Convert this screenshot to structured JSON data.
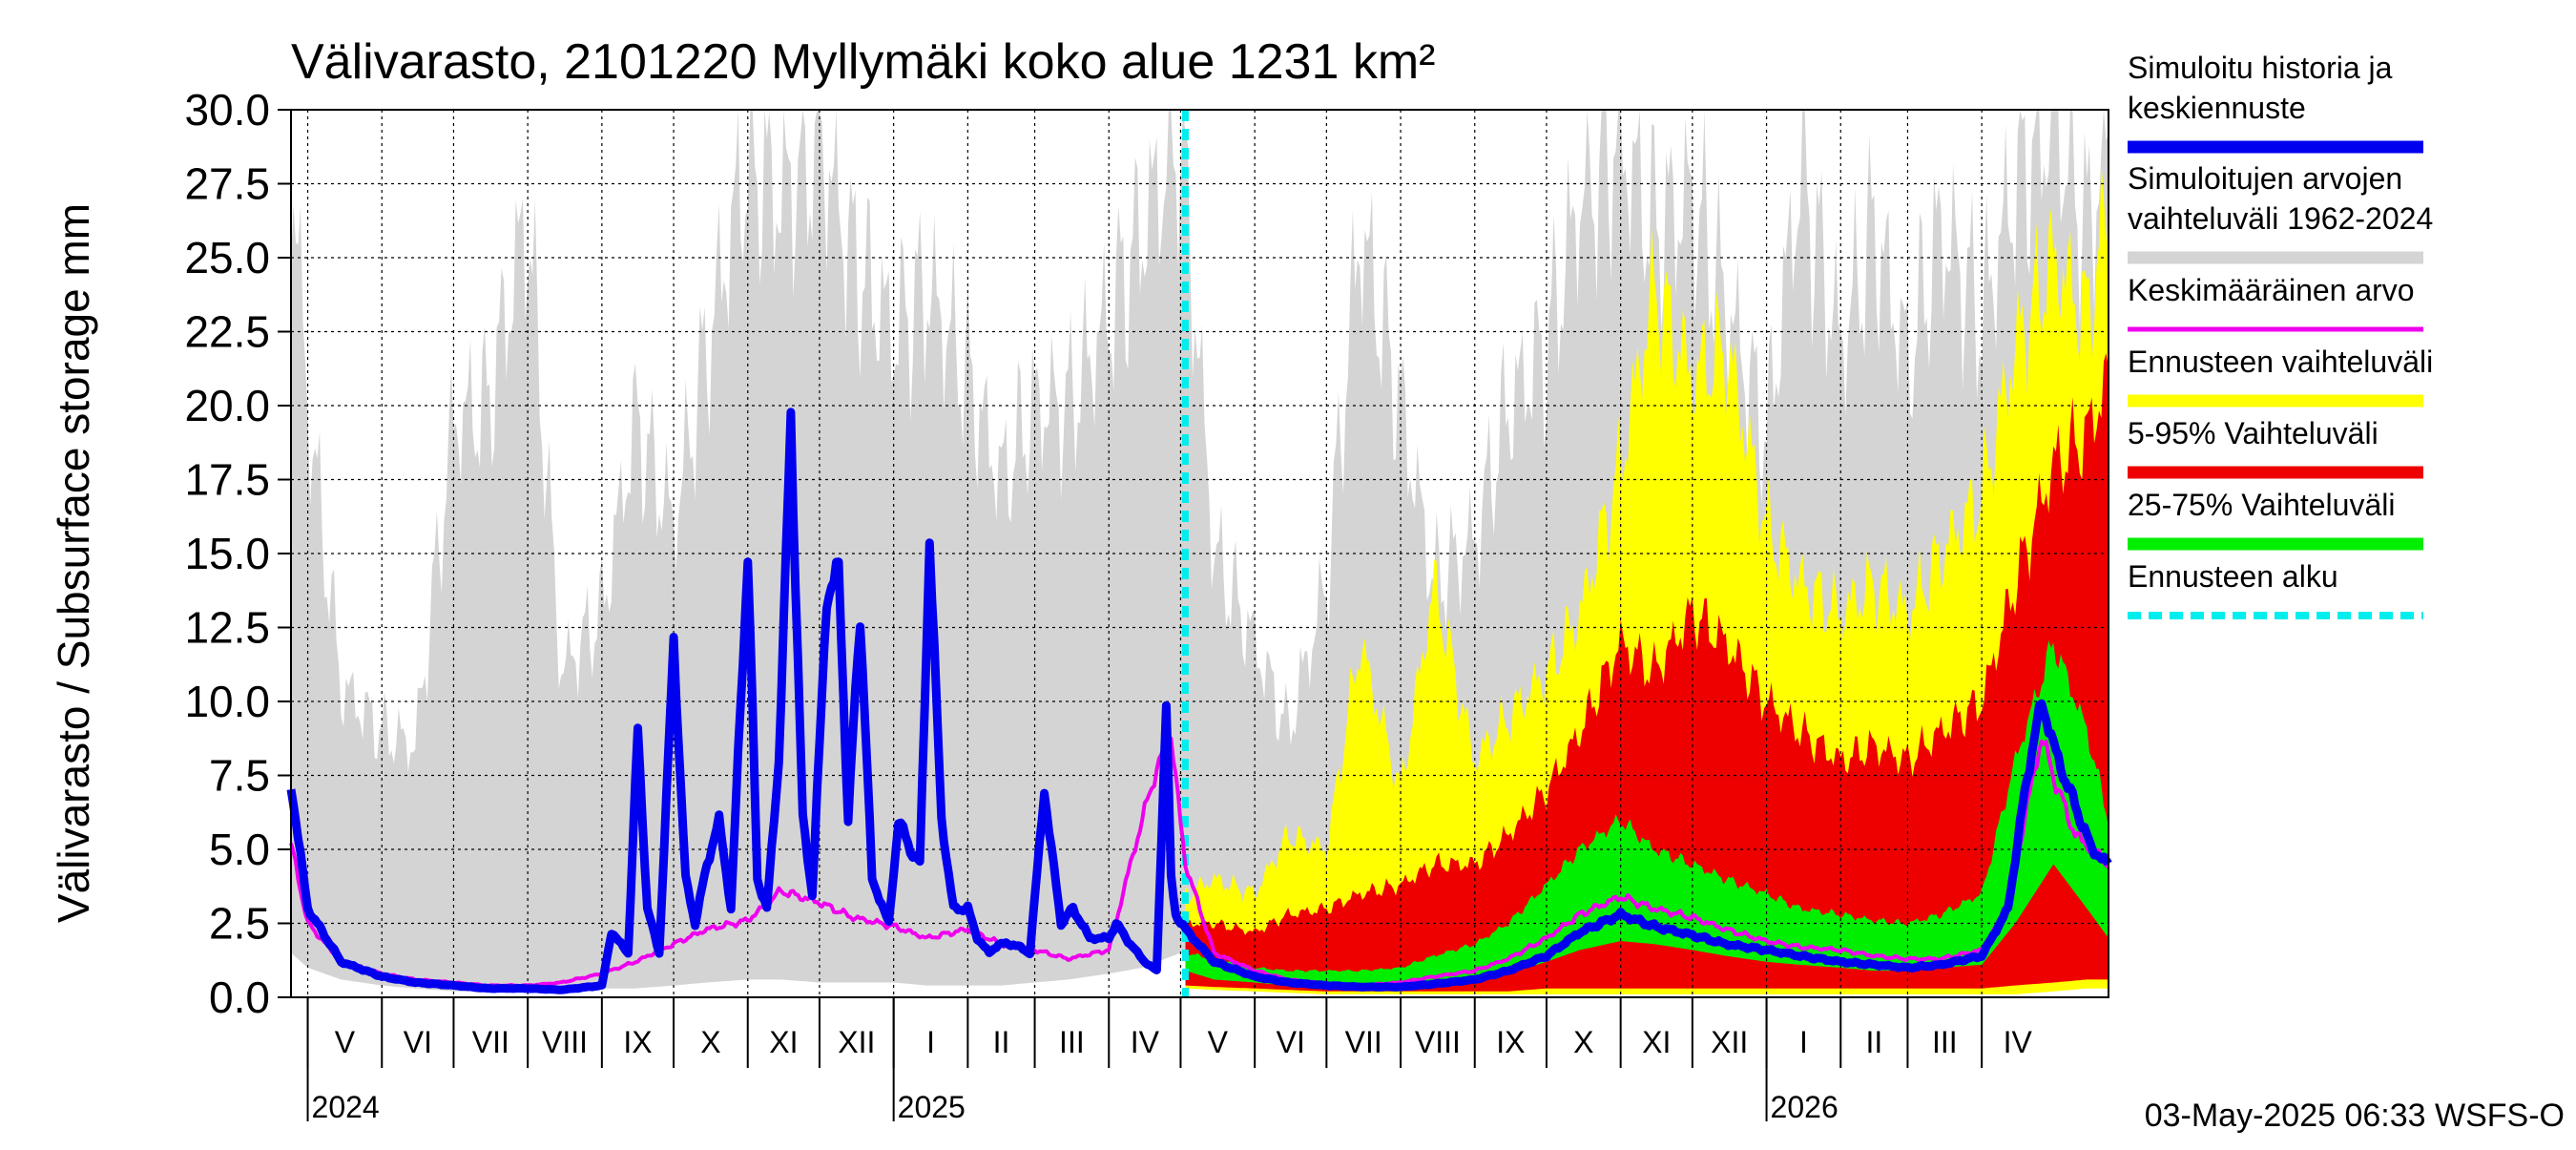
{
  "chart_data": {
    "type": "area",
    "title": "Välivarasto, 2101220 Myllymäki koko alue 1231 km²",
    "ylabel": "Välivarasto / Subsurface storage  mm",
    "ylim": [
      0,
      30
    ],
    "yticks": [
      "0.0",
      "2.5",
      "5.0",
      "7.5",
      "10.0",
      "12.5",
      "15.0",
      "17.5",
      "20.0",
      "22.5",
      "25.0",
      "27.5",
      "30.0"
    ],
    "x_start": "2024-04-24",
    "x_end": "2026-05-24",
    "forecast_start": "2025-05-03",
    "months": [
      {
        "label": "V",
        "start": "2024-05-01",
        "end": "2024-06-01"
      },
      {
        "label": "VI",
        "start": "2024-06-01",
        "end": "2024-07-01"
      },
      {
        "label": "VII",
        "start": "2024-07-01",
        "end": "2024-08-01"
      },
      {
        "label": "VIII",
        "start": "2024-08-01",
        "end": "2024-09-01"
      },
      {
        "label": "IX",
        "start": "2024-09-01",
        "end": "2024-10-01"
      },
      {
        "label": "X",
        "start": "2024-10-01",
        "end": "2024-11-01"
      },
      {
        "label": "XI",
        "start": "2024-11-01",
        "end": "2024-12-01"
      },
      {
        "label": "XII",
        "start": "2024-12-01",
        "end": "2025-01-01"
      },
      {
        "label": "I",
        "start": "2025-01-01",
        "end": "2025-02-01"
      },
      {
        "label": "II",
        "start": "2025-02-01",
        "end": "2025-03-01"
      },
      {
        "label": "III",
        "start": "2025-03-01",
        "end": "2025-04-01"
      },
      {
        "label": "IV",
        "start": "2025-04-01",
        "end": "2025-05-01"
      },
      {
        "label": "V",
        "start": "2025-05-01",
        "end": "2025-06-01"
      },
      {
        "label": "VI",
        "start": "2025-06-01",
        "end": "2025-07-01"
      },
      {
        "label": "VII",
        "start": "2025-07-01",
        "end": "2025-08-01"
      },
      {
        "label": "VIII",
        "start": "2025-08-01",
        "end": "2025-09-01"
      },
      {
        "label": "IX",
        "start": "2025-09-01",
        "end": "2025-10-01"
      },
      {
        "label": "X",
        "start": "2025-10-01",
        "end": "2025-11-01"
      },
      {
        "label": "XI",
        "start": "2025-11-01",
        "end": "2025-12-01"
      },
      {
        "label": "XII",
        "start": "2025-12-01",
        "end": "2026-01-01"
      },
      {
        "label": "I",
        "start": "2026-01-01",
        "end": "2026-02-01"
      },
      {
        "label": "II",
        "start": "2026-02-01",
        "end": "2026-03-01"
      },
      {
        "label": "III",
        "start": "2026-03-01",
        "end": "2026-04-01"
      },
      {
        "label": "IV",
        "start": "2026-04-01",
        "end": "2026-05-01"
      }
    ],
    "years": [
      {
        "label": "2024",
        "date": "2024-05-01"
      },
      {
        "label": "2025",
        "date": "2025-01-01"
      },
      {
        "label": "2026",
        "date": "2026-01-01"
      }
    ],
    "grid": true,
    "legend_position": "right",
    "legend": [
      {
        "lines": [
          "Simuloitu historia ja",
          "keskiennuste"
        ],
        "color": "#0000ee",
        "style": "thick"
      },
      {
        "lines": [
          "Simuloitujen arvojen",
          "vaihteluväli 1962-2024"
        ],
        "color": "#d4d4d4",
        "style": "thick"
      },
      {
        "lines": [
          "Keskimääräinen arvo"
        ],
        "color": "#ee00ee",
        "style": "thin"
      },
      {
        "lines": [
          "Ennusteen vaihteluväli"
        ],
        "color": "#ffff00",
        "style": "thick"
      },
      {
        "lines": [
          "5-95% Vaihteluväli"
        ],
        "color": "#ee0000",
        "style": "thick"
      },
      {
        "lines": [
          "25-75% Vaihteluväli"
        ],
        "color": "#00ee00",
        "style": "thick"
      },
      {
        "lines": [
          "Ennusteen alku"
        ],
        "color": "#00eeee",
        "style": "dashed"
      }
    ],
    "series": {
      "hist_range": {
        "name": "Simuloitujen arvojen vaihteluväli 1962-2024",
        "dates": [
          "2024-04-24",
          "2024-05-01",
          "2024-05-15",
          "2024-06-01",
          "2024-06-15",
          "2024-07-01",
          "2024-07-15",
          "2024-08-01",
          "2024-08-15",
          "2024-09-01",
          "2024-09-15",
          "2024-10-01",
          "2024-10-15",
          "2024-11-01",
          "2024-11-15",
          "2024-12-01",
          "2024-12-15",
          "2025-01-01",
          "2025-01-15",
          "2025-02-01",
          "2025-02-15",
          "2025-03-01",
          "2025-03-15",
          "2025-04-01",
          "2025-04-15",
          "2025-05-01",
          "2025-05-15",
          "2025-06-01",
          "2025-06-15",
          "2025-07-01",
          "2025-07-15",
          "2025-08-01",
          "2025-08-15",
          "2025-09-01",
          "2025-09-15",
          "2025-10-01",
          "2025-10-15",
          "2025-11-01",
          "2025-11-15",
          "2025-12-01",
          "2025-12-15",
          "2026-01-01",
          "2026-01-15",
          "2026-02-01",
          "2026-02-15",
          "2026-03-01",
          "2026-03-15",
          "2026-04-01",
          "2026-04-15",
          "2026-05-01",
          "2026-05-15",
          "2026-05-24"
        ],
        "upper": [
          28.8,
          20.0,
          10.5,
          9.0,
          8.5,
          19.5,
          20.0,
          26.5,
          11.0,
          13.0,
          19.5,
          16.0,
          22.0,
          28.5,
          27.0,
          29.0,
          25.0,
          22.5,
          24.0,
          21.0,
          17.5,
          20.0,
          20.0,
          23.0,
          26.0,
          29.5,
          15.0,
          12.0,
          9.0,
          14.0,
          26.0,
          20.0,
          14.0,
          15.5,
          20.0,
          22.0,
          27.0,
          29.0,
          26.0,
          27.0,
          23.5,
          19.0,
          28.0,
          22.0,
          26.0,
          21.5,
          26.0,
          23.0,
          27.5,
          30.0,
          26.0,
          29.0
        ],
        "lower": [
          1.5,
          1.0,
          0.6,
          0.4,
          0.3,
          0.2,
          0.2,
          0.2,
          0.2,
          0.3,
          0.3,
          0.4,
          0.5,
          0.6,
          0.6,
          0.5,
          0.5,
          0.5,
          0.4,
          0.4,
          0.4,
          0.5,
          0.6,
          0.8,
          1.0,
          1.5,
          1.0,
          0.6,
          0.4,
          0.3,
          0.2,
          0.2,
          0.2,
          0.3,
          0.3,
          0.4,
          0.5,
          0.6,
          0.6,
          0.5,
          0.5,
          0.5,
          0.4,
          0.4,
          0.4,
          0.5,
          0.6,
          0.8,
          1.0,
          1.5,
          1.2,
          1.0
        ]
      },
      "forecast_range": {
        "name": "Ennusteen vaihteluväli",
        "dates": [
          "2025-05-03",
          "2025-05-15",
          "2025-06-01",
          "2025-06-15",
          "2025-07-01",
          "2025-07-15",
          "2025-08-01",
          "2025-08-15",
          "2025-09-01",
          "2025-09-15",
          "2025-10-01",
          "2025-10-15",
          "2025-11-01",
          "2025-11-15",
          "2025-12-01",
          "2025-12-15",
          "2026-01-01",
          "2026-01-15",
          "2026-02-01",
          "2026-02-15",
          "2026-03-01",
          "2026-03-15",
          "2026-04-01",
          "2026-04-15",
          "2026-05-01",
          "2026-05-15",
          "2026-05-24"
        ],
        "upper": [
          3.5,
          4.0,
          3.5,
          5.5,
          5.0,
          12.0,
          7.0,
          14.0,
          8.0,
          9.5,
          11.0,
          13.0,
          18.0,
          24.0,
          21.0,
          22.0,
          16.0,
          14.0,
          13.0,
          14.0,
          13.0,
          15.0,
          17.0,
          22.0,
          25.0,
          23.0,
          27.0
        ],
        "lower": [
          0.3,
          0.25,
          0.2,
          0.15,
          0.1,
          0.1,
          0.1,
          0.1,
          0.1,
          0.1,
          0.1,
          0.1,
          0.1,
          0.1,
          0.1,
          0.1,
          0.1,
          0.1,
          0.1,
          0.1,
          0.1,
          0.1,
          0.1,
          0.1,
          0.2,
          0.3,
          0.3
        ]
      },
      "p5_95": {
        "name": "5-95% Vaihteluväli",
        "dates": [
          "2025-05-03",
          "2025-05-15",
          "2025-06-01",
          "2025-06-15",
          "2025-07-01",
          "2025-07-15",
          "2025-08-01",
          "2025-08-15",
          "2025-09-01",
          "2025-09-15",
          "2025-10-01",
          "2025-10-15",
          "2025-11-01",
          "2025-11-15",
          "2025-12-01",
          "2025-12-15",
          "2026-01-01",
          "2026-01-15",
          "2026-02-01",
          "2026-02-15",
          "2026-03-01",
          "2026-03-15",
          "2026-04-01",
          "2026-04-15",
          "2026-05-01",
          "2026-05-15",
          "2026-05-24"
        ],
        "upper": [
          2.5,
          2.5,
          2.2,
          2.8,
          3.0,
          3.5,
          3.8,
          4.5,
          4.5,
          5.5,
          7.0,
          9.0,
          12.0,
          11.0,
          13.0,
          12.0,
          10.0,
          9.0,
          8.0,
          8.5,
          8.0,
          9.0,
          10.0,
          14.0,
          18.0,
          19.0,
          21.0
        ],
        "lower": [
          0.4,
          0.35,
          0.3,
          0.25,
          0.2,
          0.2,
          0.2,
          0.2,
          0.2,
          0.2,
          0.3,
          0.3,
          0.3,
          0.3,
          0.3,
          0.3,
          0.3,
          0.3,
          0.3,
          0.3,
          0.3,
          0.3,
          0.3,
          0.4,
          0.5,
          0.6,
          0.6
        ]
      },
      "p25_75": {
        "name": "25-75% Vaihteluväli",
        "dates": [
          "2025-05-03",
          "2025-05-15",
          "2025-06-01",
          "2025-06-15",
          "2025-07-01",
          "2025-07-15",
          "2025-08-01",
          "2025-08-15",
          "2025-09-01",
          "2025-09-15",
          "2025-10-01",
          "2025-10-15",
          "2025-11-01",
          "2025-11-15",
          "2025-12-01",
          "2025-12-15",
          "2026-01-01",
          "2026-01-15",
          "2026-02-01",
          "2026-02-15",
          "2026-03-01",
          "2026-03-15",
          "2026-04-01",
          "2026-04-15",
          "2026-05-01",
          "2026-05-15",
          "2026-05-24"
        ],
        "upper": [
          1.5,
          1.3,
          1.0,
          0.9,
          0.9,
          0.9,
          1.0,
          1.4,
          1.8,
          2.5,
          3.8,
          5.0,
          6.0,
          5.0,
          4.5,
          4.0,
          3.5,
          3.0,
          2.8,
          2.6,
          2.5,
          2.8,
          3.5,
          8.0,
          12.0,
          9.0,
          6.0
        ],
        "lower": [
          0.9,
          0.6,
          0.5,
          0.4,
          0.35,
          0.35,
          0.4,
          0.5,
          0.6,
          0.8,
          1.2,
          1.6,
          1.9,
          1.8,
          1.6,
          1.4,
          1.2,
          1.1,
          1.0,
          0.9,
          0.9,
          1.0,
          1.1,
          2.5,
          4.5,
          3.0,
          2.0
        ]
      },
      "history": {
        "name": "Simuloitu historia ja keskiennuste",
        "dates": [
          "2024-04-24",
          "2024-05-01",
          "2024-05-15",
          "2024-06-01",
          "2024-06-15",
          "2024-07-01",
          "2024-07-15",
          "2024-08-01",
          "2024-08-15",
          "2024-09-01",
          "2024-09-05",
          "2024-09-12",
          "2024-09-16",
          "2024-09-20",
          "2024-09-25",
          "2024-10-01",
          "2024-10-06",
          "2024-10-10",
          "2024-10-15",
          "2024-10-20",
          "2024-10-25",
          "2024-11-01",
          "2024-11-05",
          "2024-11-09",
          "2024-11-14",
          "2024-11-19",
          "2024-11-24",
          "2024-11-28",
          "2024-12-04",
          "2024-12-09",
          "2024-12-13",
          "2024-12-18",
          "2024-12-23",
          "2024-12-30",
          "2025-01-03",
          "2025-01-08",
          "2025-01-12",
          "2025-01-16",
          "2025-01-21",
          "2025-01-26",
          "2025-02-01",
          "2025-02-05",
          "2025-02-10",
          "2025-02-14",
          "2025-02-20",
          "2025-02-27",
          "2025-03-05",
          "2025-03-08",
          "2025-03-12",
          "2025-03-17",
          "2025-03-24",
          "2025-04-01",
          "2025-04-04",
          "2025-04-10",
          "2025-04-16",
          "2025-04-21",
          "2025-04-25",
          "2025-04-27",
          "2025-04-29",
          "2025-05-03",
          "2025-05-15",
          "2025-06-01",
          "2025-06-15",
          "2025-07-01",
          "2025-07-15",
          "2025-08-01",
          "2025-08-15",
          "2025-09-01",
          "2025-09-15",
          "2025-10-01",
          "2025-10-15",
          "2025-11-01",
          "2025-11-15",
          "2025-12-01",
          "2025-12-15",
          "2026-01-01",
          "2026-01-15",
          "2026-02-01",
          "2026-02-15",
          "2026-03-01",
          "2026-03-15",
          "2026-04-01",
          "2026-04-12",
          "2026-04-20",
          "2026-04-26",
          "2026-05-03",
          "2026-05-10",
          "2026-05-17",
          "2026-05-24"
        ],
        "values": [
          7.2,
          3.0,
          1.2,
          0.7,
          0.5,
          0.4,
          0.3,
          0.3,
          0.25,
          0.4,
          2.2,
          1.5,
          9.0,
          3.0,
          1.5,
          12.0,
          4.0,
          2.5,
          4.5,
          6.0,
          3.0,
          15.0,
          4.0,
          3.0,
          8.0,
          19.5,
          6.0,
          3.5,
          13.5,
          14.5,
          6.0,
          13.0,
          4.0,
          2.5,
          6.0,
          5.0,
          4.5,
          15.5,
          6.0,
          3.0,
          3.0,
          2.0,
          1.5,
          1.8,
          1.8,
          1.5,
          7.0,
          5.0,
          2.5,
          3.0,
          2.0,
          2.0,
          2.5,
          1.8,
          1.2,
          0.9,
          10.0,
          4.0,
          2.8,
          2.3,
          1.2,
          0.7,
          0.5,
          0.4,
          0.35,
          0.35,
          0.45,
          0.6,
          0.9,
          1.4,
          2.2,
          2.8,
          2.4,
          2.1,
          1.8,
          1.6,
          1.4,
          1.2,
          1.1,
          1.0,
          1.1,
          1.4,
          3.0,
          7.5,
          10.0,
          8.0,
          6.5,
          5.0,
          4.5
        ]
      },
      "mean": {
        "name": "Keskimääräinen arvo",
        "dates": [
          "2024-04-24",
          "2024-05-01",
          "2024-05-15",
          "2024-06-01",
          "2024-06-15",
          "2024-07-01",
          "2024-07-15",
          "2024-08-01",
          "2024-08-15",
          "2024-09-01",
          "2024-09-15",
          "2024-10-01",
          "2024-10-15",
          "2024-11-01",
          "2024-11-15",
          "2024-12-01",
          "2024-12-15",
          "2025-01-01",
          "2025-01-15",
          "2025-02-01",
          "2025-02-15",
          "2025-03-01",
          "2025-03-15",
          "2025-04-01",
          "2025-04-10",
          "2025-04-20",
          "2025-04-27",
          "2025-05-03",
          "2025-05-15",
          "2025-06-01",
          "2025-06-15",
          "2025-07-01",
          "2025-07-15",
          "2025-08-01",
          "2025-08-15",
          "2025-09-01",
          "2025-09-15",
          "2025-10-01",
          "2025-10-15",
          "2025-11-01",
          "2025-11-15",
          "2025-12-01",
          "2025-12-15",
          "2026-01-01",
          "2026-01-15",
          "2026-02-01",
          "2026-02-15",
          "2026-03-01",
          "2026-03-15",
          "2026-04-01",
          "2026-04-12",
          "2026-04-20",
          "2026-04-26",
          "2026-05-03",
          "2026-05-10",
          "2026-05-17",
          "2026-05-24"
        ],
        "values": [
          5.2,
          2.5,
          1.2,
          0.8,
          0.6,
          0.5,
          0.4,
          0.4,
          0.5,
          0.8,
          1.2,
          1.8,
          2.3,
          2.6,
          3.6,
          3.2,
          2.7,
          2.4,
          2.0,
          2.3,
          1.8,
          1.6,
          1.3,
          1.6,
          4.5,
          7.5,
          8.8,
          4.5,
          1.5,
          0.9,
          0.6,
          0.45,
          0.4,
          0.5,
          0.7,
          0.9,
          1.3,
          2.0,
          2.8,
          3.4,
          3.0,
          2.7,
          2.3,
          1.9,
          1.7,
          1.6,
          1.4,
          1.3,
          1.3,
          1.6,
          3.0,
          6.5,
          8.8,
          7.0,
          5.5,
          5.0,
          4.5
        ]
      }
    }
  },
  "footer": {
    "timestamp": "03-May-2025 06:33 WSFS-O"
  }
}
